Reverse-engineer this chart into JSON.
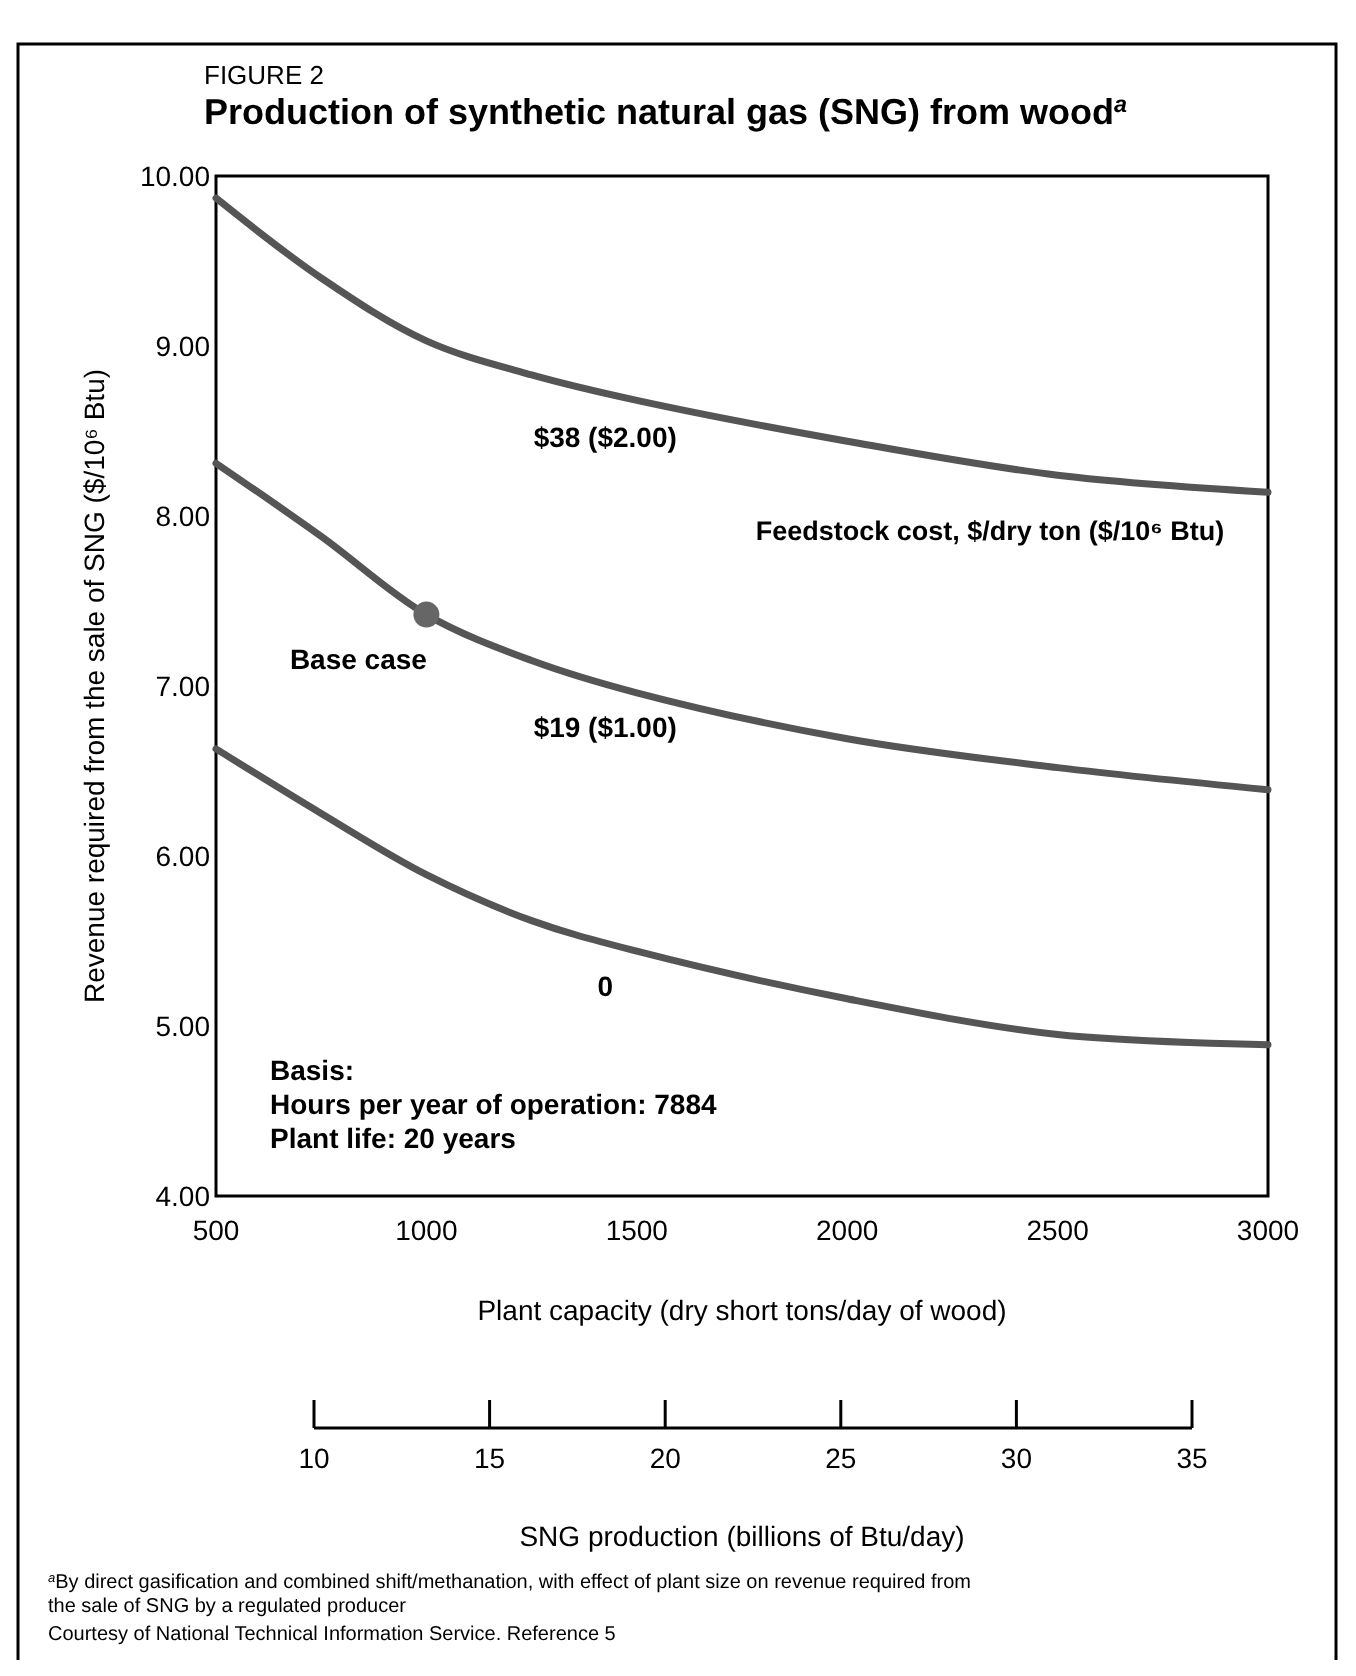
{
  "chart_data": {
    "type": "line",
    "title": "Production of synthetic natural gas (SNG) from wood$^{a}$",
    "xlabel": "Plant capacity (dry short tons/day of wood)",
    "ylabel": "Revenue required from the sale of SNG ($/10⁶ Btu)",
    "x2label": "SNG production (billions of Btu/day)",
    "legend_title": "Feedstock cost, $/dry ton ($/10⁶ Btu)",
    "x": [
      500,
      750,
      1000,
      1250,
      1500,
      2000,
      2500,
      3000
    ],
    "xlim": [
      500,
      3000
    ],
    "xticks": [
      500,
      1000,
      1500,
      2000,
      2500,
      3000
    ],
    "ylim": [
      4,
      10
    ],
    "yticks": [
      {
        "value": 4,
        "label": "4.00"
      },
      {
        "value": 5,
        "label": "5.00"
      },
      {
        "value": 6,
        "label": "6.00"
      },
      {
        "value": 7,
        "label": "7.00"
      },
      {
        "value": 8,
        "label": "8.00"
      },
      {
        "value": 9,
        "label": "9.00"
      },
      {
        "value": 10,
        "label": "10.00"
      }
    ],
    "x2lim": [
      10,
      35
    ],
    "x2ticks": [
      10,
      15,
      20,
      25,
      30,
      35
    ],
    "grid": false,
    "line_style": "solid",
    "series": [
      {
        "name": "$38 ($2.00)",
        "color": "#555555",
        "values": [
          9.87,
          9.4,
          9.03,
          8.83,
          8.68,
          8.44,
          8.24,
          8.14
        ]
      },
      {
        "name": "$19 ($1.00)",
        "color": "#555555",
        "values": [
          8.31,
          7.88,
          7.42,
          7.15,
          6.96,
          6.69,
          6.52,
          6.39
        ]
      },
      {
        "name": "0",
        "color": "#555555",
        "values": [
          6.63,
          6.25,
          5.89,
          5.62,
          5.44,
          5.16,
          4.95,
          4.89
        ]
      },
      {
        "type": "scatter",
        "marker": "circle",
        "color": "#666666",
        "x": [
          1000
        ],
        "values": [
          7.42
        ]
      }
    ],
    "annotations": [
      "FIGURE 2",
      {
        "text": "Base case",
        "x": 1000,
        "y": 7.42
      },
      "Basis:",
      "Hours per year of operation: 7884",
      "Plant life: 20 years",
      "$^{a}$By direct gasification and combined shift/methanation, with effect of plant size on revenue required from the sale of SNG by a regulated producer",
      "Courtesy of National Technical Information Service. Reference 5"
    ]
  }
}
